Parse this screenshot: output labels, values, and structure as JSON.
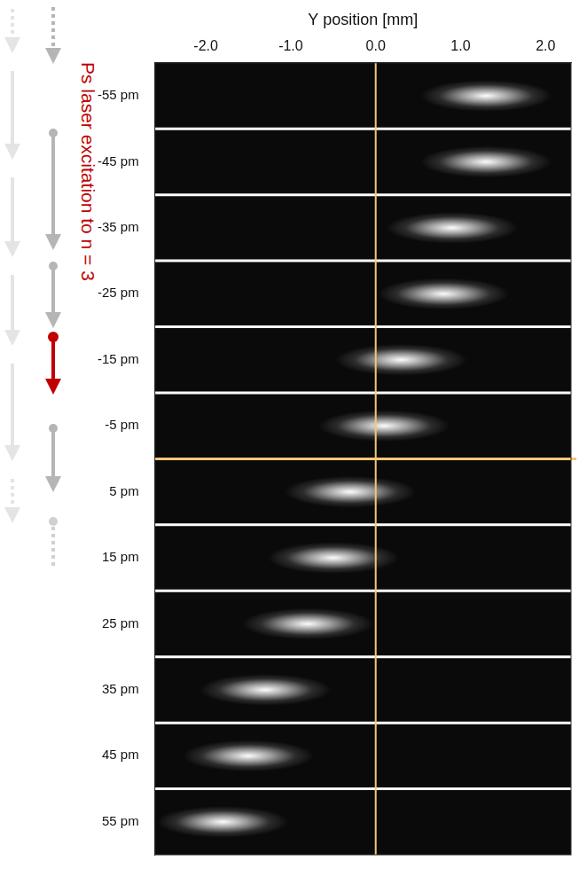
{
  "chart_data": {
    "type": "scatter",
    "x_label": "Y position [mm]",
    "categories": [
      "-55 pm",
      "-45 pm",
      "-35 pm",
      "-25 pm",
      "-15 pm",
      "-5 pm",
      "5 pm",
      "15 pm",
      "25 pm",
      "35 pm",
      "45 pm",
      "55 pm"
    ],
    "values": [
      1.3,
      1.3,
      0.9,
      0.8,
      0.3,
      0.1,
      -0.3,
      -0.5,
      -0.8,
      -1.3,
      -1.5,
      -1.8
    ],
    "color": "#ffffff",
    "xlim": [
      -2.6,
      2.3
    ],
    "xticks": [
      {
        "value": -2,
        "label": "-2.0"
      },
      {
        "value": -1,
        "label": "-1.0"
      },
      {
        "value": 0,
        "label": "0.0"
      },
      {
        "value": 1,
        "label": "1.0"
      },
      {
        "value": 2,
        "label": "2.0"
      }
    ],
    "grid": false,
    "reference_lines": {
      "x": 0,
      "between_categories": [
        "-5 pm",
        "5 pm"
      ],
      "color": "#f2c879"
    },
    "annotations": [
      {
        "text": "Ps laser excitation to n = 3",
        "color": "#c00000"
      }
    ]
  }
}
